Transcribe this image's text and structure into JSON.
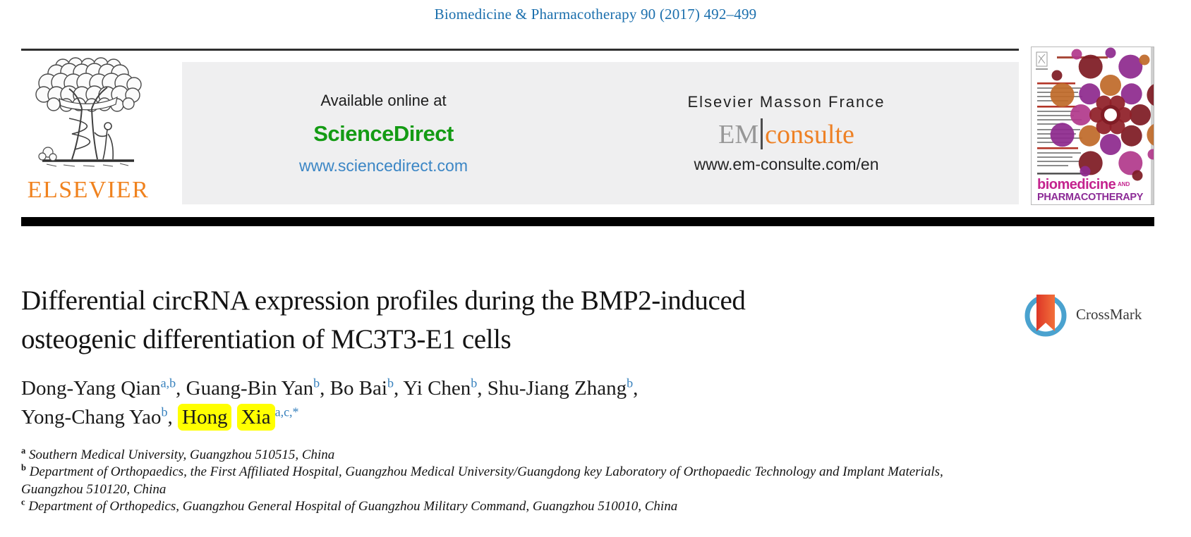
{
  "journal_header": {
    "citation": "Biomedicine & Pharmacotherapy 90 (2017) 492–499"
  },
  "banner": {
    "elsevier_wordmark": "ELSEVIER",
    "available_online_label": "Available online at",
    "sciencedirect_brand": "ScienceDirect",
    "sciencedirect_url": "www.sciencedirect.com",
    "masson_label": "Elsevier Masson France",
    "em_brand_left": "EM",
    "em_brand_right": "consulte",
    "em_url": "www.em-consulte.com/en"
  },
  "cover": {
    "brand_line1": "biomedicine",
    "brand_and": "AND",
    "brand_line2": "PHARMACOTHERAPY"
  },
  "article": {
    "title_line1": "Differential circRNA expression profiles during the BMP2-induced",
    "title_line2": "osteogenic differentiation of MC3T3-E1 cells",
    "crossmark_label": "CrossMark",
    "authors": [
      {
        "name": "Dong-Yang Qian",
        "sup": "a,b",
        "highlight": false,
        "break_after": false
      },
      {
        "name": "Guang-Bin Yan",
        "sup": "b",
        "highlight": false,
        "break_after": false
      },
      {
        "name": "Bo Bai",
        "sup": "b",
        "highlight": false,
        "break_after": false
      },
      {
        "name": "Yi Chen",
        "sup": "b",
        "highlight": false,
        "break_after": false
      },
      {
        "name": "Shu-Jiang Zhang",
        "sup": "b",
        "highlight": false,
        "break_after": true
      },
      {
        "name": "Yong-Chang Yao",
        "sup": "b",
        "highlight": false,
        "break_after": false
      },
      {
        "name": "Hong Xia",
        "sup": "a,c,*",
        "highlight": true,
        "break_after": false
      }
    ],
    "affiliations": [
      {
        "sup": "a",
        "text": "Southern Medical University, Guangzhou 510515, China"
      },
      {
        "sup": "b",
        "text": "Department of Orthopaedics, the First Affiliated Hospital, Guangzhou Medical University/Guangdong key Laboratory of Orthopaedic Technology and Implant Materials, Guangzhou 510120, China"
      },
      {
        "sup": "c",
        "text": "Department of Orthopedics, Guangzhou General Hospital of Guangzhou Military Command, Guangzhou 510010, China"
      }
    ]
  },
  "colors": {
    "link_blue": "#1b6fad",
    "author_sup_blue": "#3781bd",
    "sciencedirect_green": "#149b14",
    "elsevier_orange": "#f0821e",
    "consulte_orange": "#ee8125",
    "highlight_yellow": "#ffff00",
    "banner_gray": "#efeff0",
    "crossmark_ring_blue": "#4aa2cf",
    "crossmark_ribbon_red": "#e03a2a",
    "cover_brand_magenta": "#c4238e",
    "cover_brand_purple": "#8c2a96"
  }
}
